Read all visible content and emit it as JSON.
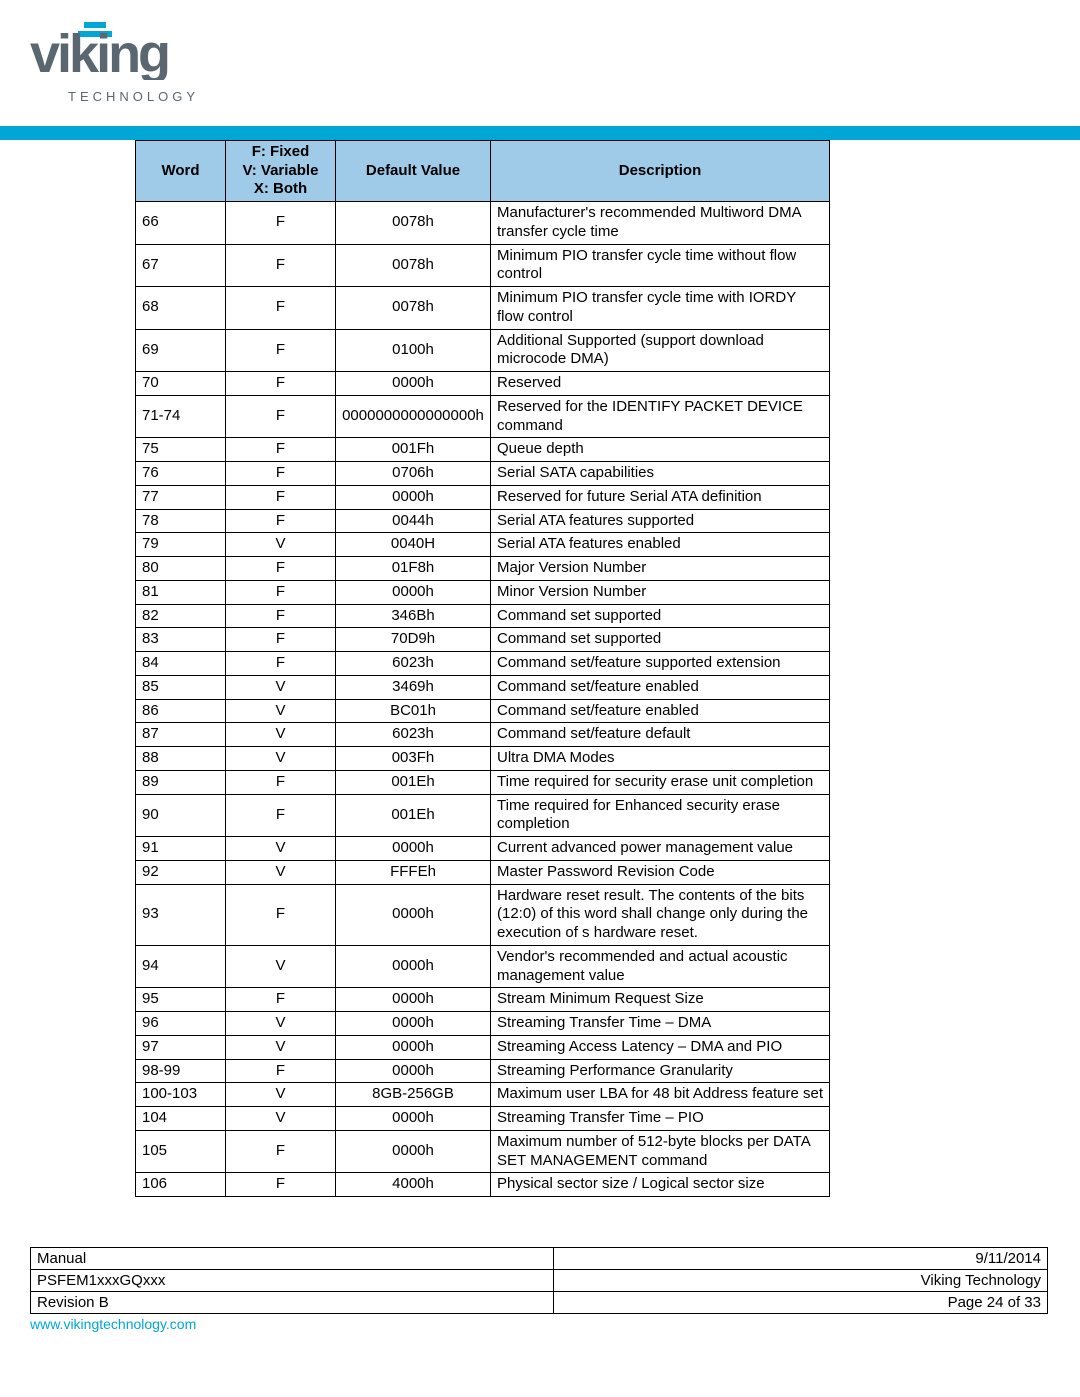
{
  "logo": {
    "main_pre": "v",
    "main_i": "i",
    "main_post": "king",
    "sub": "TECHNOLOGY"
  },
  "table": {
    "header_bg": "#9fcae8",
    "columns": {
      "word": "Word",
      "fvx": "F: Fixed\nV: Variable\nX: Both",
      "default": "Default Value",
      "desc": "Description"
    },
    "rows": [
      {
        "word": "66",
        "fvx": "F",
        "default": "0078h",
        "desc": "Manufacturer's recommended Multiword DMA transfer cycle time"
      },
      {
        "word": "67",
        "fvx": "F",
        "default": "0078h",
        "desc": "Minimum PIO transfer cycle time without flow control"
      },
      {
        "word": "68",
        "fvx": "F",
        "default": "0078h",
        "desc": "Minimum PIO transfer cycle time with IORDY flow control"
      },
      {
        "word": "69",
        "fvx": "F",
        "default": "0100h",
        "desc": "Additional Supported (support download microcode DMA)"
      },
      {
        "word": "70",
        "fvx": "F",
        "default": "0000h",
        "desc": "Reserved"
      },
      {
        "word": "71-74",
        "fvx": "F",
        "default": "0000000000000000h",
        "desc": "Reserved for the IDENTIFY PACKET DEVICE command"
      },
      {
        "word": "75",
        "fvx": "F",
        "default": "001Fh",
        "desc": "Queue depth"
      },
      {
        "word": "76",
        "fvx": "F",
        "default": "0706h",
        "desc": "Serial SATA capabilities"
      },
      {
        "word": "77",
        "fvx": "F",
        "default": "0000h",
        "desc": "Reserved for future Serial ATA definition"
      },
      {
        "word": "78",
        "fvx": "F",
        "default": "0044h",
        "desc": "Serial ATA features supported"
      },
      {
        "word": "79",
        "fvx": "V",
        "default": "0040H",
        "desc": "Serial ATA features enabled"
      },
      {
        "word": "80",
        "fvx": "F",
        "default": "01F8h",
        "desc": "Major Version Number"
      },
      {
        "word": "81",
        "fvx": "F",
        "default": "0000h",
        "desc": "Minor Version Number"
      },
      {
        "word": "82",
        "fvx": "F",
        "default": "346Bh",
        "desc": "Command set supported"
      },
      {
        "word": "83",
        "fvx": "F",
        "default": "70D9h",
        "desc": "Command set supported"
      },
      {
        "word": "84",
        "fvx": "F",
        "default": "6023h",
        "desc": "Command set/feature supported extension"
      },
      {
        "word": "85",
        "fvx": "V",
        "default": "3469h",
        "desc": "Command set/feature enabled"
      },
      {
        "word": "86",
        "fvx": "V",
        "default": "BC01h",
        "desc": "Command set/feature enabled"
      },
      {
        "word": "87",
        "fvx": "V",
        "default": "6023h",
        "desc": "Command set/feature default"
      },
      {
        "word": "88",
        "fvx": "V",
        "default": "003Fh",
        "desc": "Ultra DMA Modes"
      },
      {
        "word": "89",
        "fvx": "F",
        "default": "001Eh",
        "desc": "Time required for security erase unit completion"
      },
      {
        "word": "90",
        "fvx": "F",
        "default": "001Eh",
        "desc": "Time required for Enhanced security erase completion"
      },
      {
        "word": "91",
        "fvx": "V",
        "default": "0000h",
        "desc": "Current advanced power management value"
      },
      {
        "word": "92",
        "fvx": "V",
        "default": "FFFEh",
        "desc": "Master Password Revision Code"
      },
      {
        "word": "93",
        "fvx": "F",
        "default": "0000h",
        "desc": "Hardware reset result. The contents of the bits (12:0) of this word shall change only during the execution of s hardware reset."
      },
      {
        "word": "94",
        "fvx": "V",
        "default": "0000h",
        "desc": "Vendor's recommended and actual acoustic management value"
      },
      {
        "word": "95",
        "fvx": "F",
        "default": "0000h",
        "desc": "Stream Minimum Request Size"
      },
      {
        "word": "96",
        "fvx": "V",
        "default": "0000h",
        "desc": "Streaming Transfer Time – DMA"
      },
      {
        "word": "97",
        "fvx": "V",
        "default": "0000h",
        "desc": "Streaming Access Latency – DMA and PIO"
      },
      {
        "word": "98-99",
        "fvx": "F",
        "default": "0000h",
        "desc": "Streaming Performance Granularity"
      },
      {
        "word": "100-103",
        "fvx": "V",
        "default": "8GB-256GB",
        "desc": "Maximum user LBA for 48 bit Address feature set"
      },
      {
        "word": "104",
        "fvx": "V",
        "default": "0000h",
        "desc": "Streaming Transfer Time – PIO"
      },
      {
        "word": "105",
        "fvx": "F",
        "default": "0000h",
        "desc": "Maximum number of 512-byte blocks per DATA SET MANAGEMENT command"
      },
      {
        "word": "106",
        "fvx": "F",
        "default": "4000h",
        "desc": "Physical sector size / Logical sector size"
      }
    ]
  },
  "footer": {
    "rows": [
      {
        "left": "Manual",
        "right": "9/11/2014"
      },
      {
        "left": "PSFEM1xxxGQxxx",
        "right": "Viking Technology"
      },
      {
        "left": "Revision B",
        "right": "Page 24 of 33"
      }
    ],
    "url": "www.vikingtechnology.com"
  }
}
